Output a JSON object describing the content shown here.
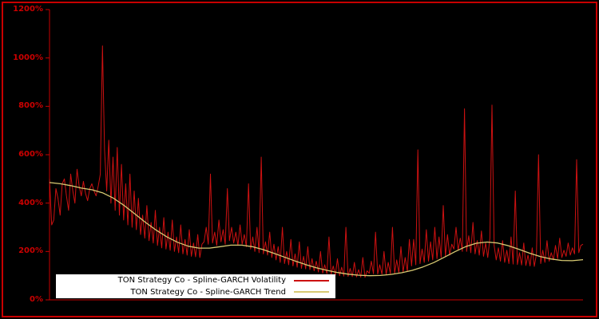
{
  "figure": {
    "background": "#000000",
    "border_color": "#c80000"
  },
  "axis": {
    "spine_color": "#c80000",
    "tick_label_color": "#cc0000",
    "y_ticks": [
      {
        "label": "0%",
        "value": 0
      },
      {
        "label": "200%",
        "value": 200
      },
      {
        "label": "400%",
        "value": 400
      },
      {
        "label": "600%",
        "value": 600
      },
      {
        "label": "800%",
        "value": 800
      },
      {
        "label": "1000%",
        "value": 1000
      },
      {
        "label": "1200%",
        "value": 1200
      }
    ]
  },
  "legend": {
    "background": "#ffffff",
    "text_color": "#000000",
    "items": [
      {
        "label": "TON Strategy Co - Spline-GARCH Volatility"
      },
      {
        "label": "TON Strategy Co - Spline-GARCH Trend"
      }
    ]
  },
  "chart_data": {
    "type": "line",
    "title": "",
    "xlabel": "",
    "ylabel": "",
    "ylim": [
      0,
      1200
    ],
    "y_unit": "percent",
    "grid": false,
    "legend_position": "bottom-left",
    "series": [
      {
        "name": "TON Strategy Co - Spline-GARCH Volatility",
        "color": "#cc1111",
        "line_width": 1,
        "values": [
          500,
          310,
          330,
          460,
          420,
          350,
          480,
          500,
          430,
          370,
          520,
          450,
          400,
          540,
          470,
          430,
          490,
          440,
          410,
          460,
          480,
          450,
          430,
          470,
          520,
          1050,
          620,
          450,
          660,
          400,
          590,
          370,
          630,
          350,
          560,
          330,
          480,
          310,
          520,
          300,
          450,
          290,
          420,
          270,
          350,
          255,
          390,
          245,
          320,
          235,
          370,
          225,
          300,
          215,
          340,
          210,
          280,
          205,
          330,
          200,
          260,
          195,
          310,
          190,
          250,
          185,
          290,
          180,
          235,
          178,
          270,
          175,
          230,
          240,
          300,
          230,
          520,
          235,
          280,
          225,
          330,
          240,
          290,
          230,
          460,
          245,
          300,
          235,
          280,
          225,
          310,
          230,
          270,
          220,
          480,
          210,
          260,
          200,
          300,
          195,
          590,
          190,
          240,
          185,
          280,
          175,
          230,
          165,
          220,
          155,
          300,
          150,
          200,
          145,
          250,
          140,
          190,
          135,
          240,
          130,
          180,
          128,
          220,
          125,
          170,
          120,
          160,
          115,
          200,
          110,
          145,
          108,
          260,
          105,
          140,
          102,
          170,
          100,
          135,
          98,
          300,
          97,
          130,
          96,
          155,
          95,
          125,
          94,
          175,
          93,
          120,
          110,
          160,
          108,
          280,
          107,
          145,
          106,
          200,
          105,
          155,
          108,
          300,
          110,
          165,
          112,
          220,
          115,
          175,
          118,
          250,
          140,
          250,
          145,
          620,
          150,
          210,
          155,
          290,
          160,
          240,
          165,
          300,
          170,
          260,
          175,
          390,
          180,
          270,
          185,
          230,
          210,
          300,
          205,
          255,
          200,
          790,
          200,
          265,
          195,
          320,
          190,
          245,
          185,
          285,
          180,
          235,
          175,
          255,
          805,
          225,
          165,
          215,
          160,
          245,
          155,
          205,
          150,
          260,
          148,
          450,
          146,
          195,
          144,
          235,
          142,
          185,
          140,
          215,
          138,
          190,
          600,
          150,
          205,
          155,
          245,
          160,
          195,
          165,
          225,
          170,
          255,
          175,
          205,
          180,
          235,
          185,
          215,
          190,
          580,
          195,
          225,
          230
        ]
      },
      {
        "name": "TON Strategy Co - Spline-GARCH Trend",
        "color": "#d8ca72",
        "line_width": 1.3,
        "values": [
          485,
          480,
          472,
          462,
          455,
          442,
          420,
          390,
          355,
          320,
          288,
          260,
          238,
          222,
          214,
          214,
          220,
          226,
          226,
          220,
          208,
          193,
          177,
          161,
          146,
          133,
          122,
          113,
          106,
          102,
          100,
          101,
          105,
          112,
          122,
          136,
          154,
          176,
          199,
          220,
          234,
          239,
          235,
          224,
          209,
          193,
          179,
          169,
          163,
          162,
          166
        ]
      }
    ]
  }
}
